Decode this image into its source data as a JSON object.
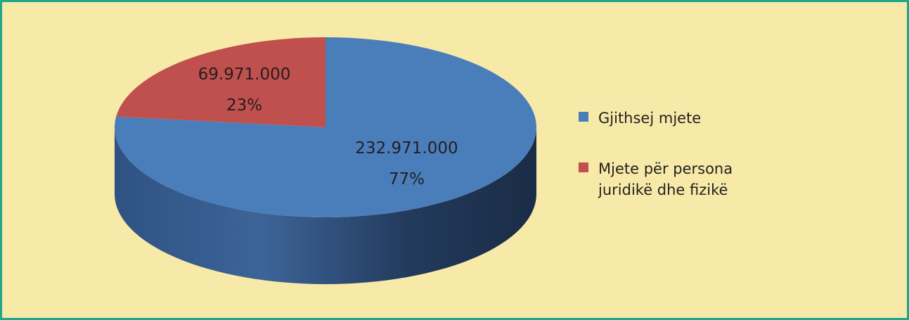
{
  "chart_data": {
    "type": "pie",
    "categories": [
      "Gjithsej mjete",
      "Mjete për persona juridikë dhe fizikë"
    ],
    "values": [
      232971000,
      69971000
    ],
    "value_labels": [
      "232.971.000",
      "69.971.000"
    ],
    "percent_labels": [
      "77%",
      "23%"
    ],
    "colors": [
      "#4a7ebb",
      "#c0504d"
    ],
    "legend": "right"
  }
}
